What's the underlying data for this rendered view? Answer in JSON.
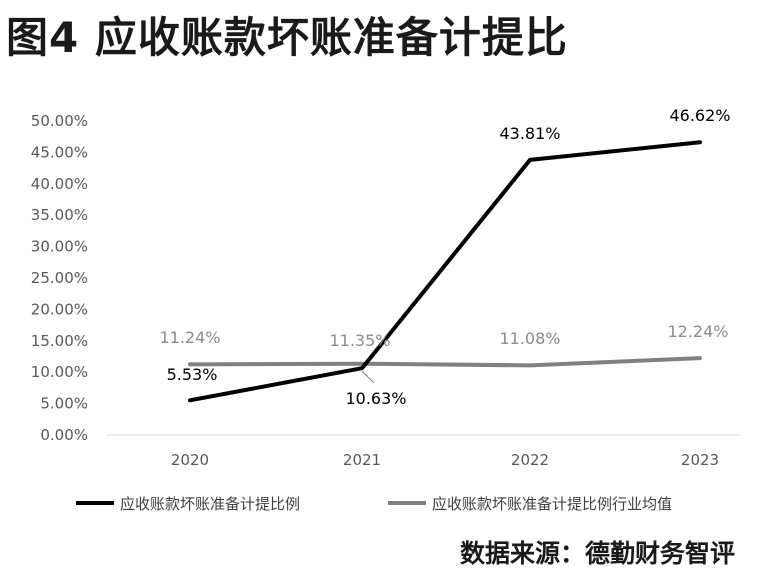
{
  "title": "图4 应收账款坏账准备计提比",
  "source": "数据来源：德勤财务智评",
  "colors": {
    "series1": "#000000",
    "series2": "#808080",
    "text": "#1a1a1a",
    "axis": "#d9d9d9"
  },
  "chart_data": {
    "type": "line",
    "x": [
      "2020",
      "2021",
      "2022",
      "2023"
    ],
    "ylim": [
      0,
      50
    ],
    "yticks": [
      "0.00%",
      "5.00%",
      "10.00%",
      "15.00%",
      "20.00%",
      "25.00%",
      "30.00%",
      "35.00%",
      "40.00%",
      "45.00%",
      "50.00%"
    ],
    "series": [
      {
        "name": "应收账款坏账准备计提比例",
        "values": [
          5.53,
          10.63,
          43.81,
          46.62
        ],
        "labels": [
          "5.53%",
          "10.63%",
          "43.81%",
          "46.62%"
        ]
      },
      {
        "name": "应收账款坏账准备计提比例行业均值",
        "values": [
          11.24,
          11.35,
          11.08,
          12.24
        ],
        "labels": [
          "11.24%",
          "11.35%",
          "11.08%",
          "12.24%"
        ]
      }
    ],
    "legend_position": "bottom",
    "grid": false
  }
}
